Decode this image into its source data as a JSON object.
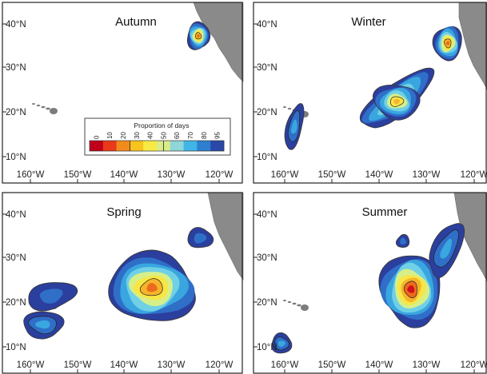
{
  "map": {
    "lat_labels": [
      "40°N",
      "30°N",
      "20°N",
      "10°N"
    ],
    "lon_labels": [
      "160°W",
      "150°W",
      "140°W",
      "130°W",
      "120°W"
    ],
    "panels": [
      {
        "season": "Autumn"
      },
      {
        "season": "Winter"
      },
      {
        "season": "Spring"
      },
      {
        "season": "Summer"
      }
    ],
    "legend": {
      "title": "Proportion of days",
      "ticks": [
        "0",
        "10",
        "20",
        "30",
        "40",
        "50",
        "60",
        "70",
        "80",
        "95"
      ],
      "colors": [
        "#c0001a",
        "#e8391a",
        "#f38b1c",
        "#f7c31e",
        "#f8ea44",
        "#d9ec8a",
        "#8fd6d8",
        "#3fb6e6",
        "#2f7fd0",
        "#2a48a8"
      ]
    }
  }
}
